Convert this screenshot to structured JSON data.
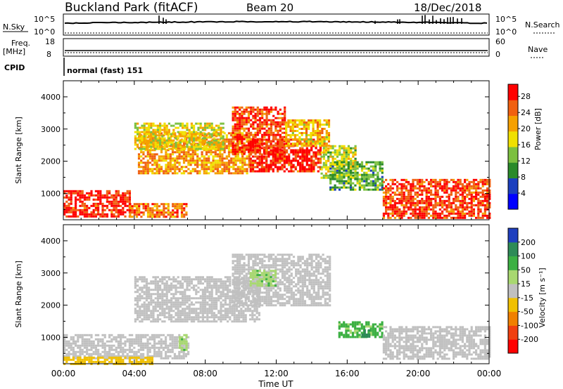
{
  "header": {
    "station": "Buckland Park (fitACF)",
    "beam": "Beam 20",
    "date": "18/Dec/2018"
  },
  "top_panels": {
    "nsky_label": "N.Sky",
    "nsky_ticks": [
      "10^5",
      "10^0"
    ],
    "nsearch_label": "N.Search",
    "nsearch_ticks": [
      "10^5",
      "10^0"
    ],
    "freq_label": "Freq.",
    "freq_unit": "[MHz]",
    "freq_ticks": [
      "18",
      "8"
    ],
    "nave_label": "Nave",
    "nave_ticks": [
      "60",
      "0"
    ],
    "cpid_label": "CPID",
    "cpid_text": "normal (fast) 151"
  },
  "chart_data": [
    {
      "type": "heatmap",
      "name": "power-panel",
      "ylabel": "Slant Range [km]",
      "y_ticks": [
        "1000",
        "2000",
        "3000",
        "4000"
      ],
      "ylim": [
        180,
        4500
      ],
      "x_ticks": [
        "00:00",
        "04:00",
        "08:00",
        "12:00",
        "16:00",
        "20:00",
        "00:00"
      ],
      "xlim_hours": [
        0,
        24
      ],
      "colorbar": {
        "label": "Power [dB]",
        "ticks": [
          "4",
          "8",
          "12",
          "16",
          "20",
          "24",
          "28"
        ],
        "range": [
          0,
          31
        ],
        "colors": [
          "#0000ff",
          "#1b3fbf",
          "#2a8a2a",
          "#7cc040",
          "#f0e000",
          "#f5a000",
          "#f06010",
          "#ff0000"
        ]
      },
      "regions": [
        {
          "t0": 0.0,
          "t1": 3.7,
          "r0": 300,
          "r1": 1100,
          "v": 28
        },
        {
          "t0": 3.7,
          "t1": 7.0,
          "r0": 250,
          "r1": 700,
          "v": 24
        },
        {
          "t0": 4.2,
          "t1": 10.5,
          "r0": 1600,
          "r1": 2900,
          "v": 22
        },
        {
          "t0": 9.5,
          "t1": 12.5,
          "r0": 2200,
          "r1": 3700,
          "v": 27
        },
        {
          "t0": 10.5,
          "t1": 14.5,
          "r0": 1700,
          "r1": 2700,
          "v": 28
        },
        {
          "t0": 14.5,
          "t1": 16.5,
          "r0": 1500,
          "r1": 2500,
          "v": 16
        },
        {
          "t0": 15.0,
          "t1": 18.0,
          "r0": 1100,
          "r1": 2000,
          "v": 12
        },
        {
          "t0": 18.0,
          "t1": 24.0,
          "r0": 250,
          "r1": 1450,
          "v": 27
        },
        {
          "t0": 4.0,
          "t1": 9.0,
          "r0": 2400,
          "r1": 3200,
          "v": 18
        },
        {
          "t0": 12.5,
          "t1": 15.0,
          "r0": 2500,
          "r1": 3300,
          "v": 20
        }
      ]
    },
    {
      "type": "heatmap",
      "name": "velocity-panel",
      "ylabel": "Slant Range [km]",
      "xlabel": "Time UT",
      "y_ticks": [
        "1000",
        "2000",
        "3000",
        "4000"
      ],
      "ylim": [
        180,
        4500
      ],
      "x_ticks": [
        "00:00",
        "04:00",
        "08:00",
        "12:00",
        "16:00",
        "20:00",
        "00:00"
      ],
      "xlim_hours": [
        0,
        24
      ],
      "colorbar": {
        "label": "Velocity [m s⁻¹]",
        "ticks": [
          "200",
          "100",
          "50",
          "15",
          "-15",
          "-50",
          "-100",
          "-200"
        ],
        "colors": [
          "#1f3fbf",
          "#2e8b57",
          "#3cb043",
          "#a8d870",
          "#c0c0c0",
          "#f0c000",
          "#f08000",
          "#f04010",
          "#ff0000"
        ]
      },
      "regions": [
        {
          "t0": 0.0,
          "t1": 7.0,
          "r0": 350,
          "r1": 1100,
          "v": 0
        },
        {
          "t0": 4.0,
          "t1": 11.0,
          "r0": 1500,
          "r1": 2900,
          "v": 0
        },
        {
          "t0": 9.5,
          "t1": 15.0,
          "r0": 2000,
          "r1": 3600,
          "v": 0
        },
        {
          "t0": 10.5,
          "t1": 12.0,
          "r0": 2600,
          "r1": 3100,
          "v": 40
        },
        {
          "t0": 15.5,
          "t1": 18.0,
          "r0": 1000,
          "r1": 1500,
          "v": 60
        },
        {
          "t0": 16.8,
          "t1": 17.2,
          "r0": 1000,
          "r1": 1250,
          "v": 150
        },
        {
          "t0": 18.0,
          "t1": 24.0,
          "r0": 350,
          "r1": 1350,
          "v": 0
        },
        {
          "t0": 0.0,
          "t1": 5.0,
          "r0": 180,
          "r1": 400,
          "v": -30
        },
        {
          "t0": 6.5,
          "t1": 7.0,
          "r0": 600,
          "r1": 1100,
          "v": 40
        }
      ]
    }
  ]
}
